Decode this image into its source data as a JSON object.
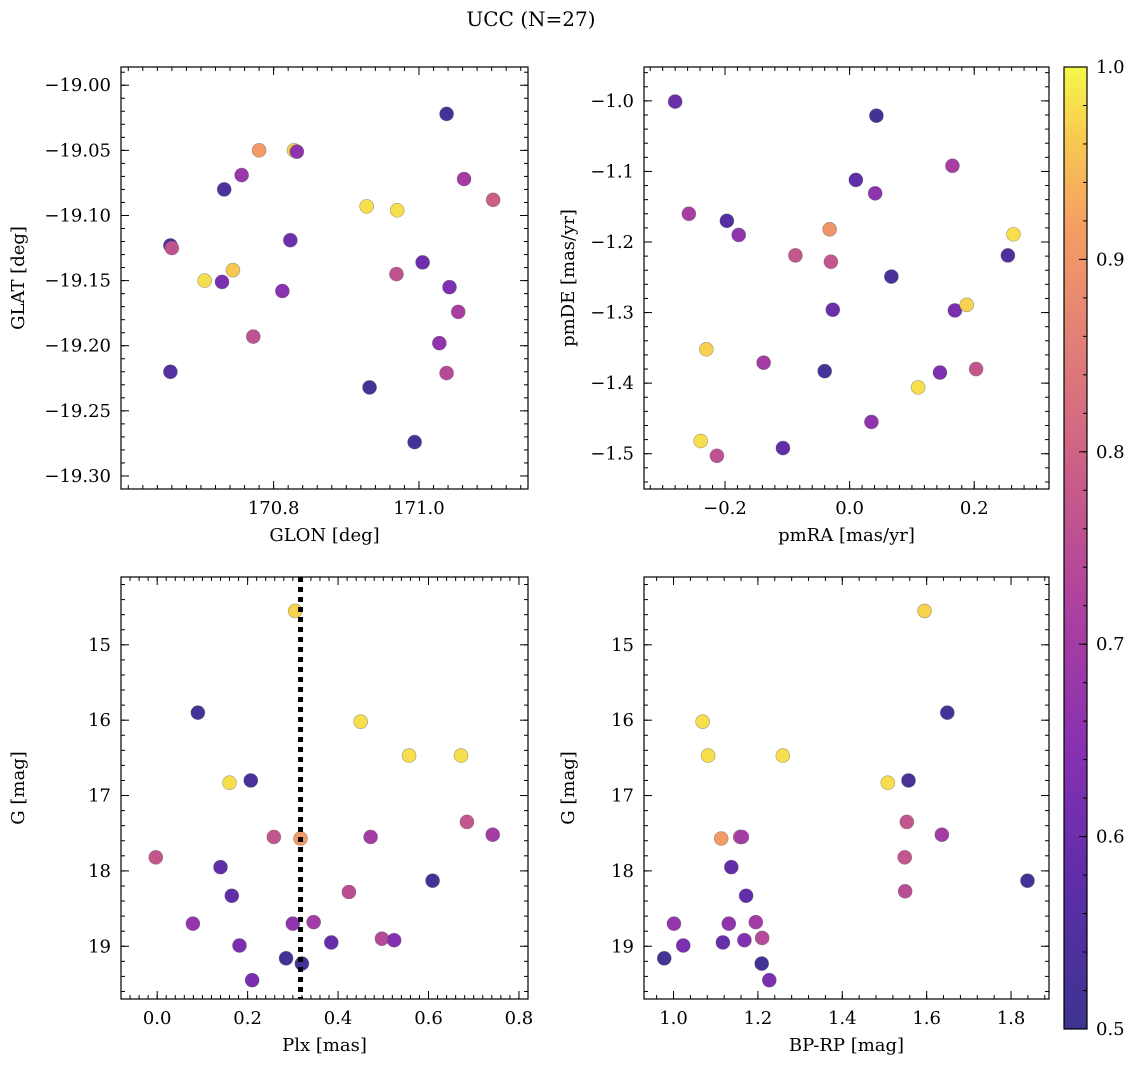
{
  "figure": {
    "title": "UCC (N=27)"
  },
  "colorbar": {
    "min": 0.5,
    "max": 1.0,
    "cmap": "plasma",
    "ticks": [
      0.5,
      0.6,
      0.7,
      0.8,
      0.9,
      1.0
    ],
    "tick_labels": [
      "0.5",
      "0.6",
      "0.7",
      "0.8",
      "0.9",
      "1.0"
    ]
  },
  "chart_data": [
    {
      "id": "glon_glat",
      "type": "scatter",
      "xlabel": "GLON [deg]",
      "ylabel": "GLAT [deg]",
      "xlim": [
        170.59,
        171.15
      ],
      "ylim": [
        -19.31,
        -18.986
      ],
      "y_inverted": false,
      "x_ticks": [
        170.8,
        171.0
      ],
      "x_tick_labels": [
        "170.8",
        "171.0"
      ],
      "y_ticks": [
        -19.0,
        -19.05,
        -19.1,
        -19.15,
        -19.2,
        -19.25,
        -19.3
      ],
      "y_tick_labels": [
        "−19.00",
        "−19.05",
        "−19.10",
        "−19.15",
        "−19.20",
        "−19.25",
        "−19.30"
      ],
      "x_minor_step": 0.02,
      "y_minor_step": 0.01,
      "points": [
        {
          "x": 170.658,
          "y": -19.123,
          "c": 0.52
        },
        {
          "x": 170.66,
          "y": -19.125,
          "c": 0.76
        },
        {
          "x": 170.658,
          "y": -19.22,
          "c": 0.56
        },
        {
          "x": 170.705,
          "y": -19.15,
          "c": 0.98
        },
        {
          "x": 170.732,
          "y": -19.08,
          "c": 0.54
        },
        {
          "x": 170.729,
          "y": -19.151,
          "c": 0.62
        },
        {
          "x": 170.744,
          "y": -19.142,
          "c": 0.96
        },
        {
          "x": 170.756,
          "y": -19.069,
          "c": 0.68
        },
        {
          "x": 170.772,
          "y": -19.193,
          "c": 0.76
        },
        {
          "x": 170.78,
          "y": -19.05,
          "c": 0.91
        },
        {
          "x": 170.812,
          "y": -19.158,
          "c": 0.65
        },
        {
          "x": 170.823,
          "y": -19.119,
          "c": 0.6
        },
        {
          "x": 170.828,
          "y": -19.05,
          "c": 0.97
        },
        {
          "x": 170.832,
          "y": -19.051,
          "c": 0.66
        },
        {
          "x": 170.928,
          "y": -19.093,
          "c": 0.98
        },
        {
          "x": 170.932,
          "y": -19.232,
          "c": 0.52
        },
        {
          "x": 170.97,
          "y": -19.096,
          "c": 0.98
        },
        {
          "x": 170.969,
          "y": -19.145,
          "c": 0.76
        },
        {
          "x": 170.994,
          "y": -19.274,
          "c": 0.52
        },
        {
          "x": 171.005,
          "y": -19.136,
          "c": 0.6
        },
        {
          "x": 171.028,
          "y": -19.198,
          "c": 0.66
        },
        {
          "x": 171.038,
          "y": -19.221,
          "c": 0.74
        },
        {
          "x": 171.038,
          "y": -19.022,
          "c": 0.52
        },
        {
          "x": 171.042,
          "y": -19.155,
          "c": 0.63
        },
        {
          "x": 171.054,
          "y": -19.174,
          "c": 0.71
        },
        {
          "x": 171.062,
          "y": -19.072,
          "c": 0.7
        },
        {
          "x": 171.102,
          "y": -19.088,
          "c": 0.79
        }
      ]
    },
    {
      "id": "pm",
      "type": "scatter",
      "xlabel": "pmRA [mas/yr]",
      "ylabel": "pmDE [mas/yr]",
      "xlim": [
        -0.33,
        0.32
      ],
      "ylim": [
        -1.55,
        -0.952
      ],
      "y_inverted": false,
      "x_ticks": [
        -0.2,
        0.0,
        0.2
      ],
      "x_tick_labels": [
        "−0.2",
        "0.0",
        "0.2"
      ],
      "y_ticks": [
        -1.0,
        -1.1,
        -1.2,
        -1.3,
        -1.4,
        -1.5
      ],
      "y_tick_labels": [
        "−1.0",
        "−1.1",
        "−1.2",
        "−1.3",
        "−1.4",
        "−1.5"
      ],
      "x_minor_step": 0.02,
      "y_minor_step": 0.02,
      "points": [
        {
          "x": -0.28,
          "y": -1.001,
          "c": 0.6
        },
        {
          "x": -0.258,
          "y": -1.16,
          "c": 0.71
        },
        {
          "x": -0.239,
          "y": -1.482,
          "c": 0.98
        },
        {
          "x": -0.23,
          "y": -1.352,
          "c": 0.97
        },
        {
          "x": -0.213,
          "y": -1.503,
          "c": 0.76
        },
        {
          "x": -0.197,
          "y": -1.17,
          "c": 0.55
        },
        {
          "x": -0.178,
          "y": -1.19,
          "c": 0.66
        },
        {
          "x": -0.138,
          "y": -1.371,
          "c": 0.7
        },
        {
          "x": -0.107,
          "y": -1.492,
          "c": 0.58
        },
        {
          "x": -0.087,
          "y": -1.219,
          "c": 0.77
        },
        {
          "x": -0.04,
          "y": -1.383,
          "c": 0.52
        },
        {
          "x": -0.032,
          "y": -1.182,
          "c": 0.9
        },
        {
          "x": -0.03,
          "y": -1.228,
          "c": 0.77
        },
        {
          "x": -0.027,
          "y": -1.296,
          "c": 0.6
        },
        {
          "x": 0.01,
          "y": -1.112,
          "c": 0.58
        },
        {
          "x": 0.035,
          "y": -1.455,
          "c": 0.66
        },
        {
          "x": 0.041,
          "y": -1.131,
          "c": 0.66
        },
        {
          "x": 0.043,
          "y": -1.021,
          "c": 0.52
        },
        {
          "x": 0.067,
          "y": -1.249,
          "c": 0.53
        },
        {
          "x": 0.11,
          "y": -1.406,
          "c": 0.98
        },
        {
          "x": 0.145,
          "y": -1.385,
          "c": 0.63
        },
        {
          "x": 0.165,
          "y": -1.092,
          "c": 0.71
        },
        {
          "x": 0.169,
          "y": -1.297,
          "c": 0.62
        },
        {
          "x": 0.188,
          "y": -1.289,
          "c": 0.97
        },
        {
          "x": 0.203,
          "y": -1.38,
          "c": 0.77
        },
        {
          "x": 0.254,
          "y": -1.219,
          "c": 0.54
        },
        {
          "x": 0.263,
          "y": -1.189,
          "c": 0.98
        }
      ]
    },
    {
      "id": "plx_g",
      "type": "scatter",
      "xlabel": "Plx [mas]",
      "ylabel": "G [mag]",
      "xlim": [
        -0.08,
        0.82
      ],
      "ylim": [
        19.7,
        14.1
      ],
      "y_inverted": true,
      "x_ticks": [
        0.0,
        0.2,
        0.4,
        0.6,
        0.8
      ],
      "x_tick_labels": [
        "0.0",
        "0.2",
        "0.4",
        "0.6",
        "0.8"
      ],
      "y_ticks": [
        15,
        16,
        17,
        18,
        19
      ],
      "y_tick_labels": [
        "15",
        "16",
        "17",
        "18",
        "19"
      ],
      "x_minor_step": 0.02,
      "y_minor_step": 0.2,
      "vline": {
        "x": 0.317,
        "style": "dotted"
      },
      "points": [
        {
          "x": -0.003,
          "y": 17.82,
          "c": 0.77
        },
        {
          "x": 0.079,
          "y": 18.7,
          "c": 0.67
        },
        {
          "x": 0.09,
          "y": 15.9,
          "c": 0.52
        },
        {
          "x": 0.14,
          "y": 17.95,
          "c": 0.58
        },
        {
          "x": 0.165,
          "y": 18.33,
          "c": 0.58
        },
        {
          "x": 0.182,
          "y": 18.99,
          "c": 0.62
        },
        {
          "x": 0.16,
          "y": 16.83,
          "c": 0.98
        },
        {
          "x": 0.207,
          "y": 16.8,
          "c": 0.53
        },
        {
          "x": 0.21,
          "y": 19.45,
          "c": 0.62
        },
        {
          "x": 0.258,
          "y": 17.55,
          "c": 0.77
        },
        {
          "x": 0.285,
          "y": 19.16,
          "c": 0.52
        },
        {
          "x": 0.3,
          "y": 18.7,
          "c": 0.66
        },
        {
          "x": 0.305,
          "y": 14.55,
          "c": 0.97
        },
        {
          "x": 0.317,
          "y": 17.57,
          "c": 0.91
        },
        {
          "x": 0.32,
          "y": 19.23,
          "c": 0.52
        },
        {
          "x": 0.346,
          "y": 18.68,
          "c": 0.7
        },
        {
          "x": 0.385,
          "y": 18.95,
          "c": 0.59
        },
        {
          "x": 0.424,
          "y": 18.28,
          "c": 0.75
        },
        {
          "x": 0.45,
          "y": 16.02,
          "c": 0.98
        },
        {
          "x": 0.472,
          "y": 17.55,
          "c": 0.7
        },
        {
          "x": 0.497,
          "y": 18.9,
          "c": 0.74
        },
        {
          "x": 0.524,
          "y": 18.92,
          "c": 0.64
        },
        {
          "x": 0.557,
          "y": 16.47,
          "c": 0.98
        },
        {
          "x": 0.609,
          "y": 18.13,
          "c": 0.52
        },
        {
          "x": 0.672,
          "y": 16.47,
          "c": 0.98
        },
        {
          "x": 0.685,
          "y": 17.35,
          "c": 0.77
        },
        {
          "x": 0.742,
          "y": 17.52,
          "c": 0.7
        }
      ]
    },
    {
      "id": "cmd",
      "type": "scatter",
      "xlabel": "BP-RP [mag]",
      "ylabel": "G [mag]",
      "xlim": [
        0.93,
        1.89
      ],
      "ylim": [
        19.7,
        14.1
      ],
      "y_inverted": true,
      "x_ticks": [
        1.0,
        1.2,
        1.4,
        1.6,
        1.8
      ],
      "x_tick_labels": [
        "1.0",
        "1.2",
        "1.4",
        "1.6",
        "1.8"
      ],
      "y_ticks": [
        15,
        16,
        17,
        18,
        19
      ],
      "y_tick_labels": [
        "15",
        "16",
        "17",
        "18",
        "19"
      ],
      "x_minor_step": 0.04,
      "y_minor_step": 0.2,
      "points": [
        {
          "x": 0.978,
          "y": 19.16,
          "c": 0.52
        },
        {
          "x": 1.001,
          "y": 18.7,
          "c": 0.67
        },
        {
          "x": 1.023,
          "y": 18.99,
          "c": 0.62
        },
        {
          "x": 1.069,
          "y": 16.02,
          "c": 0.98
        },
        {
          "x": 1.082,
          "y": 16.47,
          "c": 0.98
        },
        {
          "x": 1.113,
          "y": 17.57,
          "c": 0.91
        },
        {
          "x": 1.117,
          "y": 18.95,
          "c": 0.59
        },
        {
          "x": 1.131,
          "y": 18.7,
          "c": 0.66
        },
        {
          "x": 1.137,
          "y": 17.95,
          "c": 0.58
        },
        {
          "x": 1.158,
          "y": 17.55,
          "c": 0.77
        },
        {
          "x": 1.162,
          "y": 17.55,
          "c": 0.7
        },
        {
          "x": 1.168,
          "y": 18.92,
          "c": 0.64
        },
        {
          "x": 1.172,
          "y": 18.33,
          "c": 0.58
        },
        {
          "x": 1.195,
          "y": 18.68,
          "c": 0.7
        },
        {
          "x": 1.209,
          "y": 19.23,
          "c": 0.52
        },
        {
          "x": 1.21,
          "y": 18.89,
          "c": 0.74
        },
        {
          "x": 1.227,
          "y": 19.45,
          "c": 0.62
        },
        {
          "x": 1.259,
          "y": 16.47,
          "c": 0.98
        },
        {
          "x": 1.508,
          "y": 16.83,
          "c": 0.98
        },
        {
          "x": 1.548,
          "y": 17.82,
          "c": 0.77
        },
        {
          "x": 1.549,
          "y": 18.27,
          "c": 0.75
        },
        {
          "x": 1.553,
          "y": 17.35,
          "c": 0.77
        },
        {
          "x": 1.557,
          "y": 16.8,
          "c": 0.53
        },
        {
          "x": 1.595,
          "y": 14.55,
          "c": 0.97
        },
        {
          "x": 1.636,
          "y": 17.52,
          "c": 0.7
        },
        {
          "x": 1.649,
          "y": 15.9,
          "c": 0.52
        },
        {
          "x": 1.839,
          "y": 18.13,
          "c": 0.52
        }
      ]
    }
  ]
}
